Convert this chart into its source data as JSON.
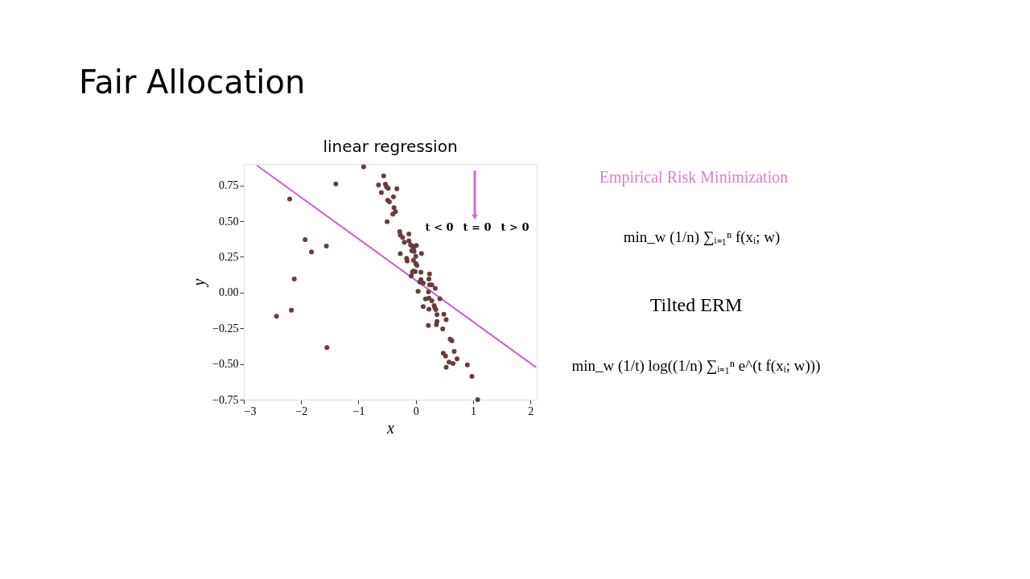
{
  "chart_data": {
    "type": "scatter",
    "title": "Fair Allocation",
    "subtitle": "linear regression",
    "xlabel": "x",
    "ylabel": "y",
    "xlim": [
      -3,
      2.11
    ],
    "ylim": [
      -0.75,
      0.9
    ],
    "xticks": [
      {
        "value": -3,
        "label": "−3"
      },
      {
        "value": -2,
        "label": "−2"
      },
      {
        "value": -1,
        "label": "−1"
      },
      0,
      1,
      2
    ],
    "yticks": [
      {
        "value": -0.75,
        "label": "−0.75"
      },
      {
        "value": -0.5,
        "label": "−0.50"
      },
      {
        "value": -0.25,
        "label": "−0.25"
      },
      {
        "value": 0,
        "label": "0.00"
      },
      {
        "value": 0.25,
        "label": "0.25"
      },
      {
        "value": 0.5,
        "label": "0.50"
      },
      {
        "value": 0.75,
        "label": "0.75"
      }
    ],
    "grid": false,
    "marker": "circle",
    "annotations": [
      "t < 0",
      "t = 0",
      "t > 0",
      "Empirical Risk Minimization",
      "min_w (1/n) ∑ᵢ₌₁ⁿ f(xᵢ; w)",
      "Tilted ERM",
      "min_w (1/t) log((1/n) ∑ᵢ₌₁ⁿ e^(t f(xᵢ; w)))"
    ],
    "series": [
      {
        "type": "scatter",
        "color": "#6b3b3b",
        "x": [
          -1.395,
          -2.2,
          -1.93,
          -1.82,
          -1.56,
          -2.12,
          -2.17,
          -2.43,
          -1.55,
          -0.91,
          -0.56,
          -0.65,
          -0.53,
          -0.51,
          -0.48,
          -0.6,
          -0.33,
          -0.39,
          -0.49,
          -0.46,
          -0.38,
          -0.355,
          -0.4,
          -0.5,
          -0.28,
          -0.27,
          -0.12,
          -0.23,
          -0.2,
          -0.12,
          -0.09,
          -0.06,
          0.01,
          -0.04,
          -0.07,
          -0.27,
          -0.03,
          0.1,
          0.0,
          -0.16,
          -0.15,
          -0.04,
          0.0,
          0.02,
          -0.04,
          -0.06,
          -0.01,
          0.09,
          -0.08,
          0.24,
          0.09,
          0.23,
          0.07,
          0.13,
          0.24,
          0.28,
          0.34,
          0.22,
          0.04,
          0.42,
          0.17,
          0.23,
          0.28,
          0.32,
          0.33,
          0.13,
          0.23,
          0.35,
          0.37,
          0.49,
          0.53,
          0.37,
          0.36,
          0.22,
          0.47,
          0.6,
          0.63,
          0.67,
          0.48,
          0.52,
          0.72,
          0.58,
          0.65,
          0.53,
          0.9,
          0.98,
          1.08
        ],
        "values": [
          0.76,
          0.655,
          0.37,
          0.285,
          0.325,
          0.095,
          -0.123,
          -0.166,
          -0.385,
          0.88,
          0.817,
          0.754,
          0.759,
          0.74,
          0.73,
          0.7,
          0.727,
          0.67,
          0.646,
          0.636,
          0.595,
          0.567,
          0.55,
          0.496,
          0.427,
          0.403,
          0.41,
          0.386,
          0.352,
          0.362,
          0.334,
          0.325,
          0.33,
          0.306,
          0.293,
          0.272,
          0.288,
          0.274,
          0.254,
          0.24,
          0.222,
          0.225,
          0.203,
          0.19,
          0.151,
          0.142,
          0.147,
          0.142,
          0.116,
          0.13,
          0.091,
          0.095,
          0.073,
          0.067,
          0.054,
          0.054,
          0.03,
          0.004,
          0.009,
          -0.043,
          -0.045,
          -0.039,
          -0.058,
          -0.091,
          -0.104,
          -0.098,
          -0.117,
          -0.119,
          -0.155,
          -0.151,
          -0.19,
          -0.203,
          -0.225,
          -0.23,
          -0.255,
          -0.326,
          -0.338,
          -0.412,
          -0.425,
          -0.445,
          -0.464,
          -0.487,
          -0.496,
          -0.524,
          -0.506,
          -0.586,
          -0.75
        ]
      },
      {
        "type": "line",
        "marker": "none",
        "color": "#cc5fcc",
        "x": [
          -2.77,
          2.1
        ],
        "values": [
          0.89,
          -0.524
        ]
      }
    ]
  }
}
